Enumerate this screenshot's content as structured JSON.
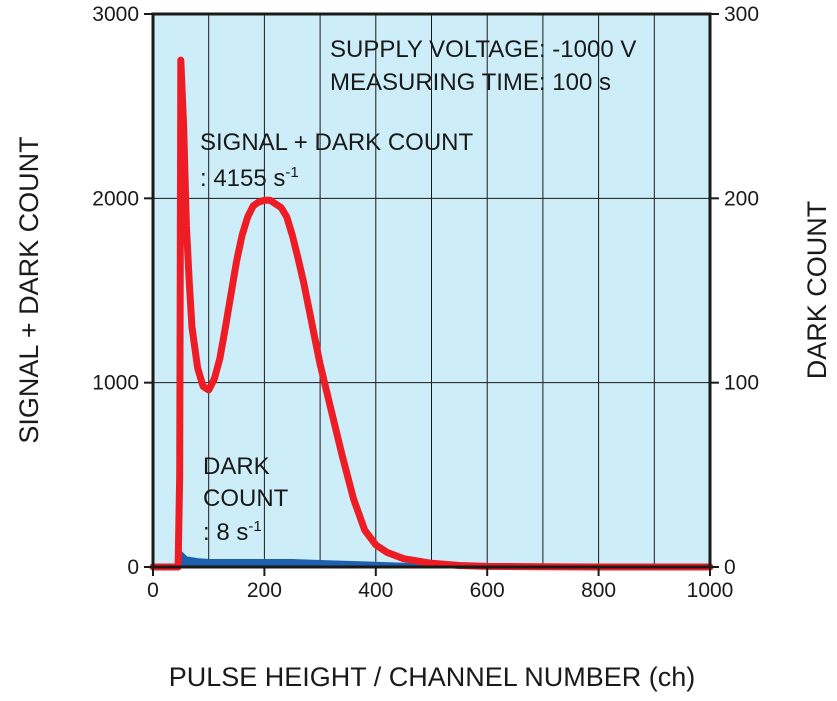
{
  "chart_data": {
    "type": "line",
    "xlabel": "PULSE HEIGHT / CHANNEL NUMBER (ch)",
    "ylabel": "SIGNAL + DARK COUNT",
    "ylabel_right": "DARK COUNT",
    "xlim": [
      0,
      1000
    ],
    "ylim": [
      0,
      3000
    ],
    "ylim_right": [
      0,
      300
    ],
    "x_ticks": [
      "0",
      "200",
      "400",
      "600",
      "800",
      "1000"
    ],
    "y_ticks": [
      "0",
      "1000",
      "2000",
      "3000"
    ],
    "y_ticks_right": [
      "0",
      "100",
      "200",
      "300"
    ],
    "grid": true,
    "background": "#cdeef8",
    "annotations": {
      "supply_voltage": "SUPPLY VOLTAGE: -1000 V",
      "measuring_time": "MEASURING TIME: 100 s",
      "signal_label": "SIGNAL + DARK COUNT",
      "signal_rate_prefix": ": 4155 s",
      "signal_rate_exp": "-1",
      "dark_label_1": "DARK",
      "dark_label_2": "COUNT",
      "dark_rate_prefix": ": 8 s",
      "dark_rate_exp": "-1"
    },
    "series": [
      {
        "color": "#ee1c25",
        "axis": "left",
        "x": [
          0,
          40,
          45,
          48,
          50,
          55,
          60,
          65,
          70,
          80,
          90,
          100,
          110,
          120,
          130,
          140,
          150,
          160,
          170,
          180,
          190,
          200,
          210,
          220,
          230,
          240,
          250,
          260,
          270,
          280,
          290,
          300,
          320,
          340,
          360,
          380,
          400,
          420,
          450,
          500,
          550,
          600,
          700,
          800,
          900,
          1000
        ],
        "y": [
          0,
          0,
          0,
          500,
          2750,
          2400,
          1850,
          1550,
          1300,
          1080,
          980,
          960,
          1020,
          1130,
          1300,
          1480,
          1660,
          1800,
          1900,
          1960,
          1980,
          1990,
          1990,
          1970,
          1950,
          1900,
          1800,
          1680,
          1550,
          1400,
          1250,
          1100,
          850,
          600,
          370,
          200,
          120,
          80,
          45,
          20,
          8,
          3,
          1,
          0,
          0,
          0
        ]
      },
      {
        "color": "#1e5fae",
        "axis": "right",
        "x": [
          0,
          40,
          45,
          48,
          50,
          60,
          80,
          100,
          150,
          200,
          250,
          300,
          350,
          400,
          450,
          500,
          550,
          600,
          650,
          700,
          800,
          900,
          1000
        ],
        "y": [
          0,
          0,
          0,
          2,
          8,
          5,
          4,
          3.5,
          3.5,
          3.5,
          3.5,
          3,
          2.5,
          2,
          1.5,
          1.2,
          1,
          0.8,
          0.6,
          0.5,
          0.3,
          0.2,
          0
        ]
      }
    ]
  }
}
